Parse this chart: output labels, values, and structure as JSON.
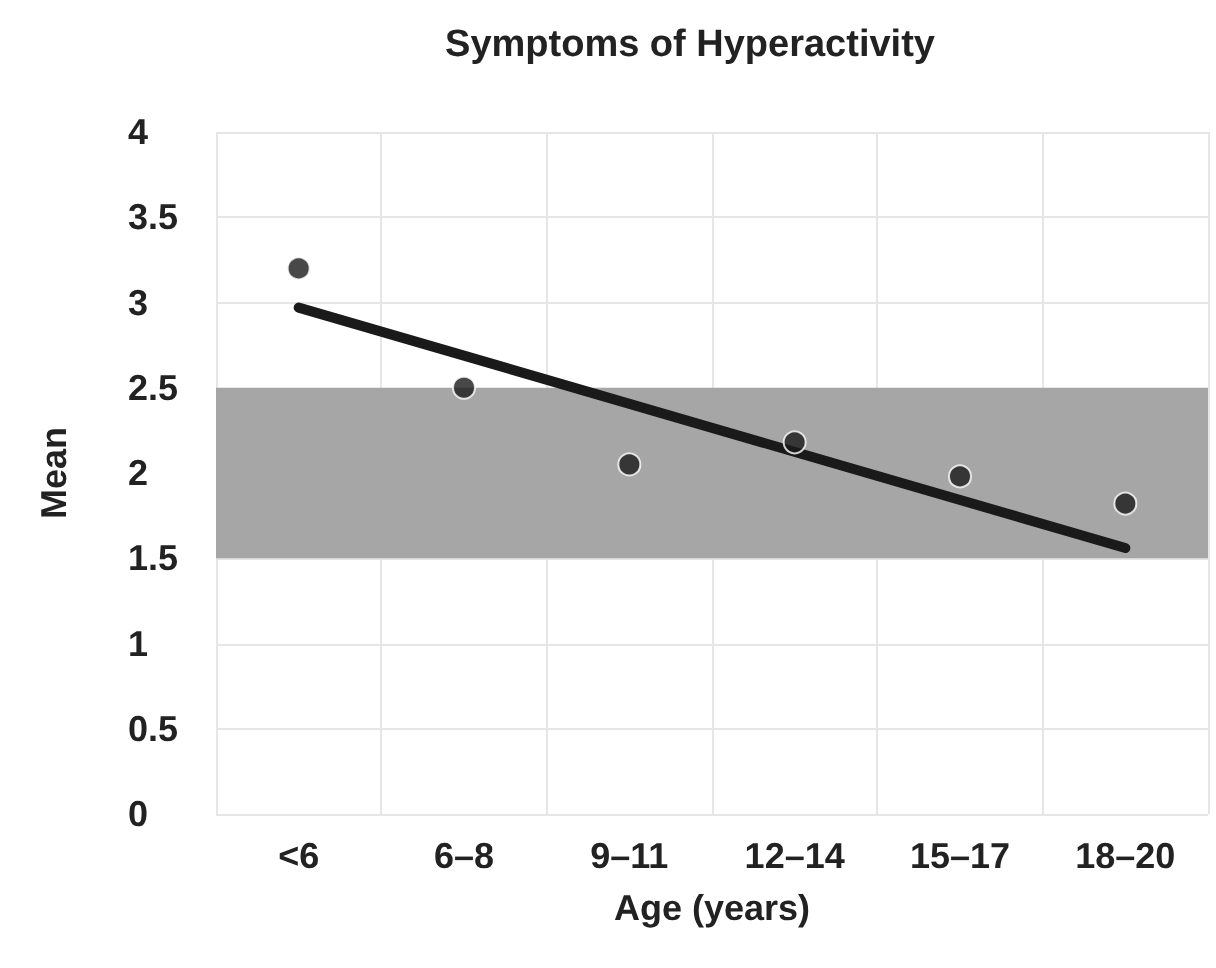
{
  "chart_data": {
    "type": "scatter",
    "title": "Symptoms of Hyperactivity",
    "xlabel": "Age (years)",
    "ylabel": "Mean",
    "categories": [
      "<6",
      "6–8",
      "9–11",
      "12–14",
      "15–17",
      "18–20"
    ],
    "series": [
      {
        "marker": "circle",
        "color": "#1a1a1a",
        "values": [
          3.2,
          2.5,
          2.05,
          2.18,
          1.98,
          1.82
        ]
      },
      {
        "type": "line",
        "marker": "none",
        "color": "#1a1a1a",
        "x": [
          "<6",
          "18–20"
        ],
        "values": [
          2.97,
          1.56
        ]
      }
    ],
    "bands": [
      {
        "axis": "y",
        "from": 1.5,
        "to": 2.5,
        "color": "#a6a6a6"
      }
    ],
    "ylim": [
      0,
      4
    ],
    "yticks": [
      0,
      0.5,
      1,
      1.5,
      2,
      2.5,
      3,
      3.5,
      4
    ],
    "grid": true
  }
}
